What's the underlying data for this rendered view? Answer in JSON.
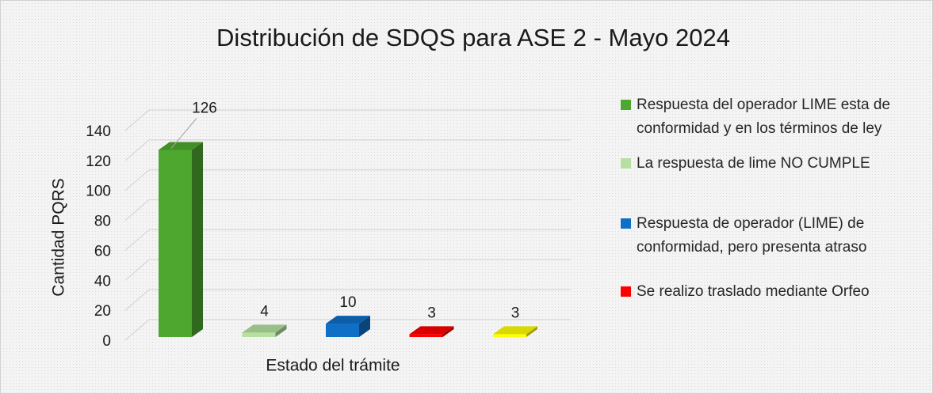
{
  "chart_data": {
    "type": "bar3d",
    "title": "Distribución de SDQS para ASE 2 - Mayo 2024",
    "y_label": "Cantidad PQRS",
    "x_label": "Estado del trámite",
    "ylim": [
      0,
      140
    ],
    "yticks": [
      0,
      20,
      40,
      60,
      80,
      100,
      120,
      140
    ],
    "grid": true,
    "legend": "right",
    "series": [
      {
        "name": "Respuesta del operador LIME esta de conformidad y en los términos de ley",
        "color": "#4ea72e",
        "values": [
          126
        ]
      },
      {
        "name": "La respuesta de lime NO CUMPLE",
        "color": "#b5e0a0",
        "values": [
          4
        ]
      },
      {
        "name": "Respuesta de operador (LIME) de conformidad, pero presenta atraso",
        "color": "#0f6fc6",
        "values": [
          10
        ]
      },
      {
        "name": "Se realizo traslado mediante Orfeo",
        "color": "#ff0000",
        "values": [
          3
        ]
      },
      {
        "name": null,
        "color": "#ffff00",
        "values": [
          3
        ]
      }
    ]
  }
}
